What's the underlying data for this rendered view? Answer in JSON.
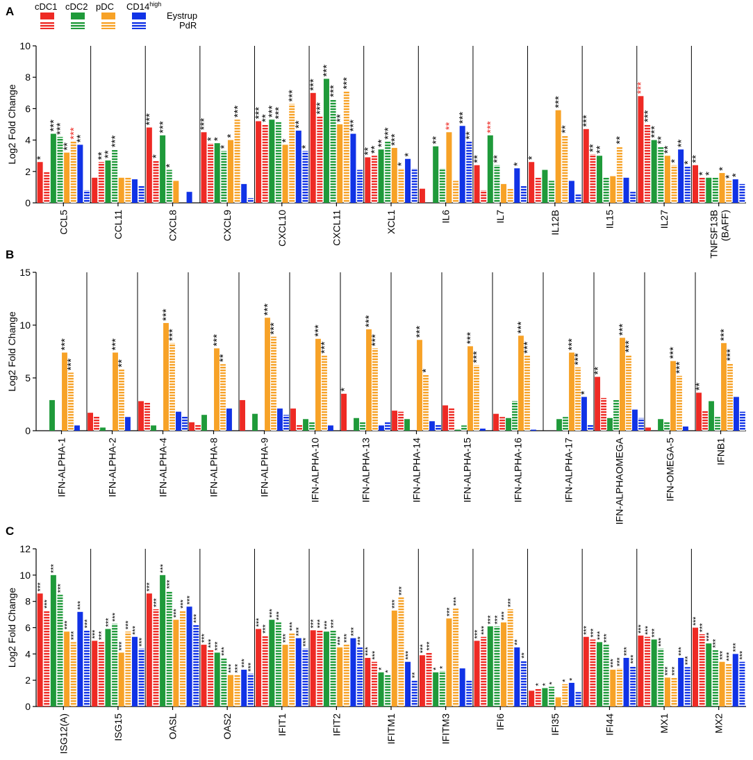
{
  "figure": {
    "legend": {
      "cell_types": [
        {
          "key": "cDC1",
          "label": "cDC1",
          "color": "#ee2a24"
        },
        {
          "key": "cDC2",
          "label": "cDC2",
          "color": "#1f9a3a"
        },
        {
          "key": "pDC",
          "label": "pDC",
          "color": "#f7a227"
        },
        {
          "key": "CD14",
          "label": "CD14",
          "superscript": "high",
          "color": "#1133e6"
        }
      ],
      "cohorts": [
        {
          "key": "Eystrup",
          "label": "Eystrup",
          "style": "solid"
        },
        {
          "key": "PdR",
          "label": "PdR",
          "style": "striped"
        }
      ]
    }
  },
  "chart_data": [
    {
      "panel": "A",
      "type": "bar",
      "ylabel": "Log2 Fold Change",
      "ylim": [
        0,
        10
      ],
      "yticks": [
        0,
        2,
        4,
        6,
        8,
        10
      ],
      "series_order": [
        "cDC1 Eystrup",
        "cDC1 PdR",
        "cDC2 Eystrup",
        "cDC2 PdR",
        "pDC Eystrup",
        "pDC PdR",
        "CD14high Eystrup",
        "CD14high PdR"
      ],
      "categories": [
        "CCL5",
        "CCL11",
        "CXCL8",
        "CXCL9",
        "CXCL10",
        "CXCL11",
        "XCL1",
        "IL6",
        "IL7",
        "IL12B",
        "IL15",
        "IL27",
        "TNFSF13B (BAFF)"
      ],
      "values": [
        [
          2.6,
          2.0,
          4.4,
          4.2,
          3.2,
          3.9,
          3.7,
          0.8
        ],
        [
          1.6,
          2.6,
          2.7,
          3.4,
          1.6,
          1.6,
          1.5,
          1.1
        ],
        [
          4.8,
          2.7,
          4.3,
          2.1,
          1.4,
          0,
          0.7,
          0
        ],
        [
          4.5,
          3.8,
          3.8,
          3.3,
          4.0,
          5.3,
          1.2,
          0.3
        ],
        [
          5.2,
          5.0,
          5.3,
          5.2,
          3.7,
          6.3,
          4.6,
          3.3
        ],
        [
          7.0,
          5.5,
          7.9,
          6.6,
          5.0,
          7.1,
          4.4,
          2.1
        ],
        [
          2.9,
          3.0,
          3.4,
          3.9,
          3.5,
          2.2,
          2.8,
          2.2
        ],
        [
          0.9,
          0,
          3.6,
          2.2,
          4.5,
          1.4,
          4.9,
          3.9
        ],
        [
          2.4,
          0.8,
          4.3,
          2.4,
          1.2,
          0.9,
          2.2,
          1.1
        ],
        [
          2.6,
          1.6,
          2.1,
          1.4,
          5.9,
          4.3,
          1.4,
          0.6
        ],
        [
          4.7,
          3.1,
          3.0,
          1.6,
          1.7,
          3.6,
          1.6,
          0.7
        ],
        [
          6.8,
          5.0,
          4.0,
          3.6,
          3.0,
          2.4,
          3.4,
          2.3
        ],
        [
          2.4,
          1.6,
          1.6,
          1.6,
          1.9,
          1.4,
          1.5,
          1.2
        ]
      ],
      "annotations": [
        [
          "*",
          "",
          "***",
          "***",
          "**",
          "***",
          "**",
          ""
        ],
        [
          "",
          "**",
          "**",
          "***",
          "",
          "",
          "",
          ""
        ],
        [
          "***",
          "*",
          "***",
          "*",
          "",
          "",
          "",
          ""
        ],
        [
          "***",
          "*",
          "*",
          "*",
          "*",
          "***",
          "",
          ""
        ],
        [
          "***",
          "**",
          "***",
          "***",
          "*",
          "***",
          "**",
          "*"
        ],
        [
          "***",
          "***",
          "***",
          "***",
          "**",
          "***",
          "***",
          ""
        ],
        [
          "**",
          "**",
          "**",
          "***",
          "***",
          "*",
          "*",
          ""
        ],
        [
          "",
          "",
          "**",
          "",
          "**",
          "",
          "***",
          "**"
        ],
        [
          "**",
          "",
          "***",
          "**",
          "",
          "",
          "*",
          ""
        ],
        [
          "*",
          "",
          "",
          "",
          "***",
          "**",
          "",
          ""
        ],
        [
          "***",
          "**",
          "**",
          "",
          "",
          "**",
          "",
          ""
        ],
        [
          "***",
          "***",
          "***",
          "**",
          "**",
          "*",
          "**",
          "*"
        ],
        [
          "**",
          "*",
          "*",
          "",
          "*",
          "*",
          "*",
          ""
        ]
      ],
      "red_annotations": [
        [
          0,
          5
        ],
        [
          7,
          4
        ],
        [
          8,
          2
        ],
        [
          11,
          0
        ]
      ]
    },
    {
      "panel": "B",
      "type": "bar",
      "ylabel": "Log2 Fold Change",
      "ylim": [
        0,
        15
      ],
      "yticks": [
        0,
        5,
        10,
        15
      ],
      "series_order": [
        "cDC1 Eystrup",
        "cDC1 PdR",
        "cDC2 Eystrup",
        "cDC2 PdR",
        "pDC Eystrup",
        "pDC PdR",
        "CD14high Eystrup",
        "CD14high PdR"
      ],
      "categories": [
        "IFN-ALPHA-1",
        "IFN-ALPHA-2",
        "IFN-ALPHA-4",
        "IFN-ALPHA-8",
        "IFN-ALPHA-9",
        "IFN-ALPHA-10",
        "IFN-ALPHA-13",
        "IFN-ALPHA-14",
        "IFN-ALPHA-15",
        "IFN-ALPHA-16",
        "IFN-ALPHA-17",
        "IFN-ALPHAOMEGA",
        "IFN-OMEGA-5",
        "IFNB1"
      ],
      "values": [
        [
          0,
          0,
          2.9,
          0,
          7.4,
          5.5,
          0.5,
          0
        ],
        [
          1.7,
          1.4,
          0.3,
          0,
          7.4,
          5.8,
          1.3,
          0
        ],
        [
          2.8,
          2.7,
          0.5,
          0,
          10.2,
          8.3,
          1.8,
          1.4
        ],
        [
          0.8,
          0.6,
          1.5,
          0,
          7.8,
          6.3,
          2.1,
          0
        ],
        [
          2.9,
          0,
          1.6,
          0,
          10.7,
          8.9,
          2.1,
          1.5
        ],
        [
          2.1,
          0.6,
          1.1,
          0.8,
          8.7,
          7.1,
          0.5,
          0
        ],
        [
          3.5,
          0,
          1.2,
          0.8,
          9.6,
          7.8,
          0.5,
          0.8
        ],
        [
          1.9,
          1.8,
          1.1,
          0,
          8.6,
          5.3,
          0.9,
          0.6
        ],
        [
          2.4,
          2.2,
          0.1,
          0.5,
          8.0,
          6.2,
          0.2,
          0
        ],
        [
          1.6,
          1.3,
          1.2,
          2.8,
          9.0,
          7.1,
          0.1,
          0
        ],
        [
          0,
          0,
          1.1,
          1.3,
          7.4,
          6.0,
          3.2,
          0.6
        ],
        [
          5.1,
          3.1,
          1.2,
          2.9,
          8.8,
          7.2,
          2.0,
          1.2
        ],
        [
          0.3,
          0,
          1.1,
          0.8,
          6.6,
          5.2,
          0.4,
          0
        ],
        [
          3.6,
          1.9,
          2.8,
          1.3,
          8.3,
          6.4,
          3.2,
          1.8
        ]
      ],
      "annotations": [
        [
          "",
          "",
          "",
          "",
          "***",
          "***",
          "",
          ""
        ],
        [
          "",
          "",
          "",
          "",
          "***",
          "**",
          "",
          ""
        ],
        [
          "",
          "",
          "",
          "",
          "***",
          "***",
          "",
          ""
        ],
        [
          "",
          "",
          "",
          "",
          "***",
          "**",
          "",
          ""
        ],
        [
          "",
          "",
          "",
          "",
          "***",
          "***",
          "",
          ""
        ],
        [
          "",
          "",
          "",
          "",
          "***",
          "***",
          "",
          ""
        ],
        [
          "*",
          "",
          "",
          "",
          "***",
          "***",
          "",
          ""
        ],
        [
          "",
          "",
          "",
          "",
          "***",
          "*",
          "",
          ""
        ],
        [
          "",
          "",
          "",
          "",
          "***",
          "***",
          "",
          ""
        ],
        [
          "",
          "",
          "",
          "",
          "***",
          "***",
          "",
          ""
        ],
        [
          "",
          "",
          "",
          "",
          "***",
          "***",
          "*",
          ""
        ],
        [
          "**",
          "",
          "",
          "",
          "***",
          "***",
          "",
          ""
        ],
        [
          "",
          "",
          "",
          "",
          "***",
          "***",
          "",
          ""
        ],
        [
          "**",
          "",
          "",
          "",
          "***",
          "***",
          "",
          ""
        ]
      ],
      "red_annotations": []
    },
    {
      "panel": "C",
      "type": "bar",
      "ylabel": "Log2 Fold Change",
      "ylim": [
        0,
        12
      ],
      "yticks": [
        0,
        2,
        4,
        6,
        8,
        10,
        12
      ],
      "series_order": [
        "cDC1 Eystrup",
        "cDC1 PdR",
        "cDC2 Eystrup",
        "cDC2 PdR",
        "pDC Eystrup",
        "pDC PdR",
        "CD14high Eystrup",
        "CD14high PdR"
      ],
      "categories": [
        "ISG12(A)",
        "ISG15",
        "OASL",
        "OAS2",
        "IFIT1",
        "IFIT2",
        "IFITM1",
        "IFITM3",
        "IFI6",
        "IFI35",
        "IFI44",
        "MX1",
        "MX2"
      ],
      "values": [
        [
          8.6,
          7.3,
          10.0,
          8.5,
          5.7,
          4.9,
          7.2,
          5.8
        ],
        [
          5.0,
          4.9,
          5.9,
          6.3,
          4.1,
          5.7,
          5.3,
          4.4
        ],
        [
          8.6,
          7.4,
          10.0,
          8.8,
          6.6,
          7.3,
          7.6,
          6.2
        ],
        [
          4.7,
          4.3,
          4.1,
          3.7,
          2.4,
          2.4,
          2.8,
          2.5
        ],
        [
          5.9,
          5.4,
          6.6,
          6.4,
          4.7,
          5.6,
          5.2,
          4.4
        ],
        [
          5.8,
          5.8,
          5.7,
          5.8,
          4.5,
          4.7,
          5.2,
          4.5
        ],
        [
          3.7,
          3.4,
          2.6,
          2.4,
          7.3,
          8.3,
          3.4,
          2.0
        ],
        [
          3.9,
          4.1,
          2.6,
          2.7,
          6.7,
          7.5,
          2.9,
          2.0
        ],
        [
          5.0,
          5.3,
          6.1,
          6.1,
          6.4,
          7.4,
          4.5,
          3.5
        ],
        [
          1.2,
          1.4,
          1.4,
          1.5,
          0.7,
          1.7,
          1.8,
          1.1
        ],
        [
          5.3,
          5.1,
          4.9,
          4.7,
          2.8,
          2.9,
          3.7,
          3.1
        ],
        [
          5.4,
          5.3,
          5.1,
          4.4,
          2.2,
          2.2,
          3.7,
          3.0
        ],
        [
          6.0,
          5.5,
          4.8,
          4.3,
          3.4,
          3.3,
          4.0,
          3.4
        ]
      ],
      "annotations": [
        [
          "***",
          "***",
          "***",
          "***",
          "***",
          "***",
          "***",
          "***"
        ],
        [
          "***",
          "***",
          "***",
          "***",
          "***",
          "***",
          "***",
          "***"
        ],
        [
          "***",
          "***",
          "***",
          "***",
          "***",
          "***",
          "***",
          "***"
        ],
        [
          "***",
          "***",
          "***",
          "***",
          "***",
          "***",
          "***",
          "***"
        ],
        [
          "***",
          "***",
          "***",
          "***",
          "***",
          "***",
          "***",
          "***"
        ],
        [
          "***",
          "***",
          "***",
          "***",
          "***",
          "***",
          "***",
          "***"
        ],
        [
          "***",
          "***",
          "*",
          "*",
          "***",
          "***",
          "***",
          "**"
        ],
        [
          "***",
          "***",
          "*",
          "*",
          "***",
          "***",
          "",
          ""
        ],
        [
          "***",
          "***",
          "***",
          "***",
          "***",
          "***",
          "**",
          "**"
        ],
        [
          "",
          "*",
          "*",
          "*",
          "",
          "*",
          "*",
          ""
        ],
        [
          "***",
          "***",
          "***",
          "***",
          "***",
          "***",
          "***",
          "***"
        ],
        [
          "***",
          "***",
          "***",
          "***",
          "***",
          "***",
          "***",
          "***"
        ],
        [
          "***",
          "***",
          "***",
          "***",
          "***",
          "***",
          "***",
          "***"
        ]
      ],
      "red_annotations": []
    }
  ]
}
